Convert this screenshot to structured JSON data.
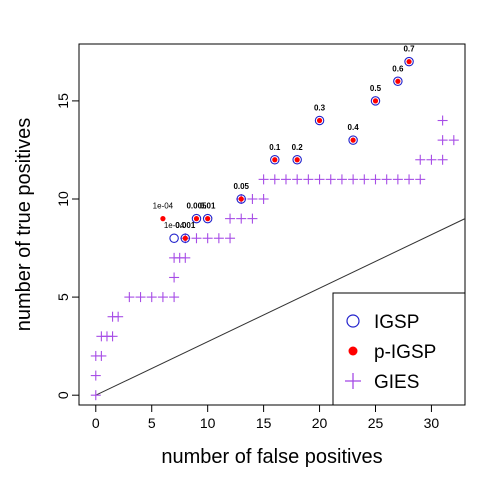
{
  "chart_data": {
    "type": "scatter",
    "title": "",
    "xlabel": "number of false positives",
    "ylabel": "number of true positives",
    "xlim": [
      -1.5,
      33
    ],
    "ylim": [
      -0.5,
      17.9
    ],
    "x_ticks": [
      0,
      5,
      10,
      15,
      20,
      25,
      30
    ],
    "y_ticks": [
      0,
      5,
      10,
      15
    ],
    "grid": false,
    "legend_position": "bottom-right",
    "reference_line": {
      "from": [
        0,
        0
      ],
      "to": [
        33,
        9
      ],
      "color": "#333333"
    },
    "series": [
      {
        "name": "IGSP",
        "marker": "open-circle",
        "color": "#2222cc",
        "points": [
          [
            7,
            8
          ],
          [
            8,
            8
          ],
          [
            9,
            9
          ],
          [
            10,
            9
          ],
          [
            13,
            10
          ],
          [
            16,
            12
          ],
          [
            18,
            12
          ],
          [
            20,
            14
          ],
          [
            23,
            13
          ],
          [
            25,
            15
          ],
          [
            27,
            16
          ],
          [
            28,
            17
          ]
        ]
      },
      {
        "name": "p-IGSP",
        "marker": "filled-circle",
        "color": "#ff0000",
        "points": [
          [
            6,
            9
          ],
          [
            8,
            8
          ],
          [
            9,
            9
          ],
          [
            10,
            9
          ],
          [
            13,
            10
          ],
          [
            16,
            12
          ],
          [
            18,
            12
          ],
          [
            20,
            14
          ],
          [
            23,
            13
          ],
          [
            25,
            15
          ],
          [
            27,
            16
          ],
          [
            28,
            17
          ]
        ]
      },
      {
        "name": "GIES",
        "marker": "plus",
        "color": "#a64ce6",
        "points": [
          [
            0,
            0
          ],
          [
            0,
            1
          ],
          [
            0,
            2
          ],
          [
            0.5,
            2
          ],
          [
            0.5,
            3
          ],
          [
            1,
            3
          ],
          [
            1.5,
            3
          ],
          [
            1.5,
            4
          ],
          [
            2,
            4
          ],
          [
            3,
            5
          ],
          [
            4,
            5
          ],
          [
            5,
            5
          ],
          [
            6,
            5
          ],
          [
            7,
            5
          ],
          [
            7,
            6
          ],
          [
            7,
            7
          ],
          [
            7.5,
            7
          ],
          [
            8,
            7
          ],
          [
            8,
            8
          ],
          [
            9,
            8
          ],
          [
            10,
            8
          ],
          [
            11,
            8
          ],
          [
            12,
            8
          ],
          [
            12,
            9
          ],
          [
            13,
            9
          ],
          [
            14,
            9
          ],
          [
            13,
            10
          ],
          [
            14,
            10
          ],
          [
            15,
            10
          ],
          [
            15,
            11
          ],
          [
            16,
            11
          ],
          [
            17,
            11
          ],
          [
            18,
            11
          ],
          [
            19,
            11
          ],
          [
            20,
            11
          ],
          [
            21,
            11
          ],
          [
            22,
            11
          ],
          [
            23,
            11
          ],
          [
            24,
            11
          ],
          [
            25,
            11
          ],
          [
            26,
            11
          ],
          [
            27,
            11
          ],
          [
            28,
            11
          ],
          [
            29,
            11
          ],
          [
            29,
            12
          ],
          [
            30,
            12
          ],
          [
            31,
            12
          ],
          [
            31,
            13
          ],
          [
            32,
            13
          ],
          [
            31,
            14
          ]
        ]
      }
    ],
    "annotations": [
      {
        "text": "1e-04",
        "x": 6,
        "y": 9,
        "bold": false
      },
      {
        "text": "1e-04",
        "x": 7,
        "y": 8,
        "bold": false
      },
      {
        "text": "0.001",
        "x": 8,
        "y": 8,
        "bold": true
      },
      {
        "text": "0.005",
        "x": 9,
        "y": 9,
        "bold": true
      },
      {
        "text": "0.01",
        "x": 10,
        "y": 9,
        "bold": true
      },
      {
        "text": "0.05",
        "x": 13,
        "y": 10,
        "bold": true
      },
      {
        "text": "0.1",
        "x": 16,
        "y": 12,
        "bold": true
      },
      {
        "text": "0.2",
        "x": 18,
        "y": 12,
        "bold": true
      },
      {
        "text": "0.3",
        "x": 20,
        "y": 14,
        "bold": true
      },
      {
        "text": "0.4",
        "x": 23,
        "y": 13,
        "bold": true
      },
      {
        "text": "0.5",
        "x": 25,
        "y": 15,
        "bold": true
      },
      {
        "text": "0.6",
        "x": 27,
        "y": 16,
        "bold": true
      },
      {
        "text": "0.7",
        "x": 28,
        "y": 17,
        "bold": true
      }
    ]
  }
}
